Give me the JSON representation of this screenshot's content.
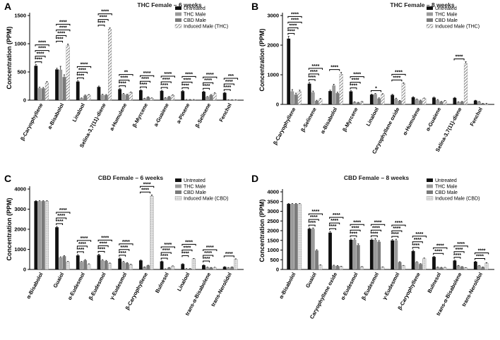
{
  "figure": {
    "width": 708,
    "height": 482
  },
  "legend_swatch_names": [
    "Untreated",
    "THC Male",
    "CBD Male",
    "Induced Male"
  ],
  "sig_marker": "****",
  "colors": {
    "untreated": "#111111",
    "thc": "#9a9a9a",
    "cbd": "#7a7a7a",
    "induced_hatch": "#666666",
    "induced_dots": "#bbbbbb"
  },
  "chart_data": [
    {
      "panel": "A",
      "type": "bar",
      "title": "THC Female – 6 weeks",
      "ylabel": "Concentration (PPM)",
      "ylim": [
        0,
        1500
      ],
      "yticks": [
        0,
        500,
        1000,
        1500
      ],
      "legend": [
        "Untreated",
        "THC Male",
        "CBD Male",
        "Induced Male (THC)"
      ],
      "induced_pattern": "hatch",
      "categories": [
        "β-Caryophyllene",
        "a-Bisabolol",
        "Linalool",
        "Selina-3,7(11)-diene",
        "a-Humulene",
        "β-Myrcene",
        "a-Guaiene",
        "a-Pinene",
        "β-Selinene",
        "Fenchol"
      ],
      "series": [
        {
          "name": "Untreated",
          "values": [
            610,
            545,
            330,
            235,
            195,
            175,
            165,
            160,
            150,
            130
          ]
        },
        {
          "name": "THC Male",
          "values": [
            215,
            540,
            35,
            95,
            110,
            30,
            40,
            10,
            60,
            5
          ]
        },
        {
          "name": "CBD Male",
          "values": [
            210,
            410,
            80,
            90,
            95,
            55,
            60,
            10,
            90,
            5
          ]
        },
        {
          "name": "Induced Male (THC)",
          "values": [
            310,
            965,
            90,
            1260,
            135,
            35,
            85,
            10,
            120,
            5
          ]
        }
      ],
      "errors": [
        [
          20,
          20,
          15,
          15,
          10,
          10,
          10,
          10,
          10,
          8
        ],
        [
          15,
          60,
          5,
          10,
          10,
          5,
          5,
          2,
          5,
          2
        ],
        [
          15,
          40,
          10,
          10,
          10,
          5,
          5,
          2,
          10,
          2
        ],
        [
          20,
          30,
          10,
          20,
          10,
          5,
          10,
          2,
          10,
          2
        ]
      ],
      "annotations": [
        {
          "cat": 0,
          "levels": 4,
          "text": "****"
        },
        {
          "cat": 1,
          "levels": 4,
          "text": "****"
        },
        {
          "cat": 2,
          "levels": 3,
          "text": "****"
        },
        {
          "cat": 3,
          "levels": 3,
          "text": "****"
        },
        {
          "cat": 4,
          "levels": 3,
          "text": "**"
        },
        {
          "cat": 5,
          "levels": 3,
          "text": "****"
        },
        {
          "cat": 6,
          "levels": 3,
          "text": "****"
        },
        {
          "cat": 7,
          "levels": 3,
          "text": "****"
        },
        {
          "cat": 8,
          "levels": 3,
          "text": "****"
        },
        {
          "cat": 9,
          "levels": 3,
          "text": "***"
        }
      ]
    },
    {
      "panel": "B",
      "type": "bar",
      "title": "THC Female – 8 weeks",
      "ylabel": "Concentration (PPM)",
      "ylim": [
        0,
        3000
      ],
      "yticks": [
        0,
        1000,
        2000,
        3000
      ],
      "legend": [
        "Untreated",
        "THC Male",
        "CBD Male",
        "Induced Male (THC)"
      ],
      "induced_pattern": "hatch",
      "categories": [
        "β-Caryophyllene",
        "β-Selinene",
        "α-Bisabolol",
        "β-Myrcene",
        "Linalool",
        "Caryophyllene oxide",
        "α-Humulene",
        "α-Guaiene",
        "Selina-3,7(11)-diene",
        "Fenchol"
      ],
      "series": [
        {
          "name": "Untreated",
          "values": [
            2220,
            700,
            450,
            440,
            330,
            320,
            240,
            230,
            220,
            130
          ]
        },
        {
          "name": "THC Male",
          "values": [
            440,
            410,
            640,
            80,
            350,
            190,
            170,
            150,
            80,
            90
          ]
        },
        {
          "name": "CBD Male",
          "values": [
            330,
            120,
            380,
            60,
            200,
            120,
            130,
            90,
            90,
            30
          ]
        },
        {
          "name": "Induced Male (THC)",
          "values": [
            430,
            180,
            1020,
            90,
            340,
            700,
            200,
            120,
            1380,
            30
          ]
        }
      ],
      "errors": [
        [
          80,
          40,
          30,
          20,
          20,
          20,
          20,
          15,
          15,
          10
        ],
        [
          60,
          40,
          40,
          10,
          20,
          20,
          15,
          15,
          10,
          10
        ],
        [
          50,
          20,
          30,
          10,
          20,
          15,
          15,
          10,
          10,
          5
        ],
        [
          50,
          20,
          60,
          10,
          20,
          30,
          15,
          10,
          60,
          5
        ]
      ],
      "annotations": [
        {
          "cat": 0,
          "levels": 4,
          "text": "****"
        },
        {
          "cat": 1,
          "levels": 3,
          "text": "****"
        },
        {
          "cat": 2,
          "levels": 1,
          "text": "****"
        },
        {
          "cat": 3,
          "levels": 3,
          "text": "****"
        },
        {
          "cat": 4,
          "levels": 1,
          "text": "*"
        },
        {
          "cat": 5,
          "levels": 2,
          "text": "****"
        },
        {
          "cat": 8,
          "levels": 1,
          "text": "****"
        }
      ]
    },
    {
      "panel": "C",
      "type": "bar",
      "title": "CBD Female – 6 weeks",
      "ylabel": "Concentration (PPM)",
      "ylim": [
        0,
        4000
      ],
      "yticks": [
        0,
        1000,
        2000,
        3000,
        4000
      ],
      "legend": [
        "Untreated",
        "THC Male",
        "CBD Male",
        "Induced Male (CBD)"
      ],
      "induced_pattern": "dots",
      "categories": [
        "α-Bisabolol",
        "Guaiol",
        "α-Eudesmol",
        "β-Eudesmol",
        "γ-Eudesmol",
        "β-Caryophyllene",
        "Bulnesol",
        "Linalool",
        "trans-α-Bisabolene",
        "trans-Nerolidol"
      ],
      "series": [
        {
          "name": "Untreated",
          "values": [
            3400,
            2100,
            700,
            720,
            540,
            450,
            400,
            270,
            210,
            130
          ]
        },
        {
          "name": "THC Male",
          "values": [
            3400,
            600,
            380,
            460,
            380,
            120,
            30,
            40,
            110,
            90
          ]
        },
        {
          "name": "CBD Male",
          "values": [
            3400,
            660,
            460,
            420,
            320,
            200,
            90,
            40,
            90,
            120
          ]
        },
        {
          "name": "Induced Male (CBD)",
          "values": [
            3400,
            380,
            260,
            300,
            240,
            3650,
            170,
            530,
            100,
            510
          ]
        }
      ],
      "errors": [
        [
          20,
          40,
          40,
          40,
          30,
          20,
          20,
          15,
          15,
          10
        ],
        [
          20,
          30,
          20,
          30,
          20,
          10,
          5,
          5,
          10,
          10
        ],
        [
          20,
          30,
          30,
          30,
          20,
          10,
          10,
          5,
          10,
          10
        ],
        [
          20,
          20,
          20,
          20,
          20,
          60,
          10,
          20,
          10,
          20
        ]
      ],
      "annotations": [
        {
          "cat": 1,
          "levels": 3,
          "text": "****"
        },
        {
          "cat": 2,
          "levels": 3,
          "text": "****"
        },
        {
          "cat": 3,
          "levels": 3,
          "text": "****"
        },
        {
          "cat": 4,
          "levels": 3,
          "text": "****"
        },
        {
          "cat": 5,
          "levels": 2,
          "text": "****"
        },
        {
          "cat": 6,
          "levels": 3,
          "text": "****"
        },
        {
          "cat": 7,
          "levels": 3,
          "text": "****"
        },
        {
          "cat": 8,
          "levels": 3,
          "text": "****"
        },
        {
          "cat": 9,
          "levels": 1,
          "text": "****"
        }
      ]
    },
    {
      "panel": "D",
      "type": "bar",
      "title": "CBD Female – 8 weeks",
      "ylabel": "Concentration (PPM)",
      "ylim": [
        0,
        4000
      ],
      "yticks": [
        0,
        500,
        1000,
        1500,
        2000,
        2500,
        3000,
        3500,
        4000
      ],
      "legend": [
        "Untreated",
        "THC Male",
        "CBD Male",
        "Induced Male (CBD)"
      ],
      "induced_pattern": "dots",
      "categories": [
        "α-Bisabolol",
        "Guaiol",
        "Caryophyllene oxide",
        "α-Eudesmol",
        "β-Eudesmol",
        "γ-Eudesmol",
        "β-Caryophyllene",
        "Bulnesol",
        "trans-α-Bisabolene",
        "trans-Nerolidol"
      ],
      "series": [
        {
          "name": "Untreated",
          "values": [
            3380,
            2100,
            1900,
            1530,
            1530,
            1500,
            950,
            650,
            460,
            400
          ]
        },
        {
          "name": "THC Male",
          "values": [
            3380,
            2100,
            200,
            1530,
            1530,
            1500,
            380,
            120,
            200,
            200
          ]
        },
        {
          "name": "CBD Male",
          "values": [
            3380,
            980,
            180,
            1260,
            1430,
            380,
            280,
            100,
            140,
            120
          ]
        },
        {
          "name": "Induced Male (CBD)",
          "values": [
            3380,
            220,
            150,
            140,
            120,
            200,
            560,
            100,
            90,
            330
          ]
        }
      ],
      "errors": [
        [
          20,
          40,
          60,
          40,
          40,
          40,
          40,
          30,
          20,
          20
        ],
        [
          20,
          40,
          20,
          60,
          60,
          60,
          20,
          10,
          10,
          10
        ],
        [
          20,
          40,
          20,
          60,
          60,
          20,
          20,
          10,
          10,
          10
        ],
        [
          20,
          20,
          10,
          10,
          10,
          10,
          30,
          10,
          10,
          20
        ]
      ],
      "annotations": [
        {
          "cat": 1,
          "levels": 3,
          "text": "****"
        },
        {
          "cat": 2,
          "levels": 3,
          "text": "****"
        },
        {
          "cat": 3,
          "levels": 3,
          "text": "****"
        },
        {
          "cat": 4,
          "levels": 3,
          "text": "****"
        },
        {
          "cat": 5,
          "levels": 3,
          "text": "****"
        },
        {
          "cat": 6,
          "levels": 3,
          "text": "****"
        },
        {
          "cat": 7,
          "levels": 2,
          "text": "****"
        },
        {
          "cat": 8,
          "levels": 3,
          "text": "****"
        },
        {
          "cat": 9,
          "levels": 2,
          "text": "****"
        }
      ]
    }
  ]
}
